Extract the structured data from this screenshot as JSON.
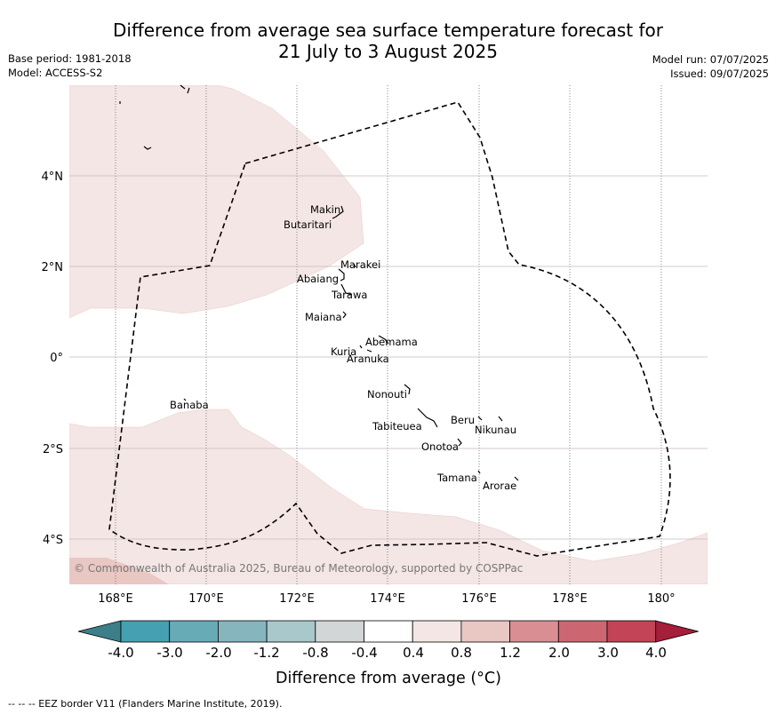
{
  "title_line1": "Difference from average sea surface temperature forecast for",
  "title_line2": "21 July to 3 August 2025",
  "base_period": "Base period: 1981-2018",
  "model": "Model: ACCESS-S2",
  "model_run": "Model run: 07/07/2025",
  "issued": "Issued: 09/07/2025",
  "copyright": "© Commonwealth of Australia 2025, Bureau of Meteorology, supported by COSPPac",
  "x_ticks": [
    "168°E",
    "170°E",
    "172°E",
    "174°E",
    "176°E",
    "178°E",
    "180°"
  ],
  "y_ticks": [
    "4°N",
    "2°N",
    "0°",
    "2°S",
    "4°S"
  ],
  "places": [
    {
      "name": "Makin",
      "lon": 172.95,
      "lat": 3.2
    },
    {
      "name": "Butaritari",
      "lon": 172.85,
      "lat": 2.9
    },
    {
      "name": "Marakei",
      "lon": 173.3,
      "lat": 2.0
    },
    {
      "name": "Abaiang",
      "lon": 172.9,
      "lat": 1.8
    },
    {
      "name": "Tarawa",
      "lon": 173.0,
      "lat": 1.4
    },
    {
      "name": "Maiana",
      "lon": 173.05,
      "lat": 0.95
    },
    {
      "name": "Abemama",
      "lon": 173.9,
      "lat": 0.4
    },
    {
      "name": "Kuria",
      "lon": 173.4,
      "lat": 0.23
    },
    {
      "name": "Aranuka",
      "lon": 173.6,
      "lat": 0.17
    },
    {
      "name": "Nonouti",
      "lon": 174.4,
      "lat": -0.65
    },
    {
      "name": "Banaba",
      "lon": 169.5,
      "lat": -0.87
    },
    {
      "name": "Beru",
      "lon": 176.0,
      "lat": -1.33
    },
    {
      "name": "Nikunau",
      "lon": 176.45,
      "lat": -1.35
    },
    {
      "name": "Tabiteuea",
      "lon": 174.9,
      "lat": -1.3
    },
    {
      "name": "Onotoa",
      "lon": 175.55,
      "lat": -1.8
    },
    {
      "name": "Tamana",
      "lon": 175.98,
      "lat": -2.5
    },
    {
      "name": "Arorae",
      "lon": 176.85,
      "lat": -2.65
    }
  ],
  "colorbar": {
    "labels": [
      "-4.0",
      "-3.0",
      "-2.0",
      "-1.2",
      "-0.8",
      "-0.4",
      "0.4",
      "0.8",
      "1.2",
      "2.0",
      "3.0",
      "4.0"
    ],
    "colors": [
      "#45a1b1",
      "#67abb7",
      "#87b5bd",
      "#a9c8cc",
      "#d3d6d6",
      "#ffffff",
      "#f4e6e5",
      "#e9c7c3",
      "#d98e94",
      "#cc6771",
      "#c24456"
    ],
    "under_color": "#3c7f8a",
    "over_color": "#a51e3a",
    "label": "Difference from average (",
    "label_unit": "°C)"
  },
  "footer": "--  --  -- EEZ border V11 (Flanders Marine Institute, 2019)."
}
